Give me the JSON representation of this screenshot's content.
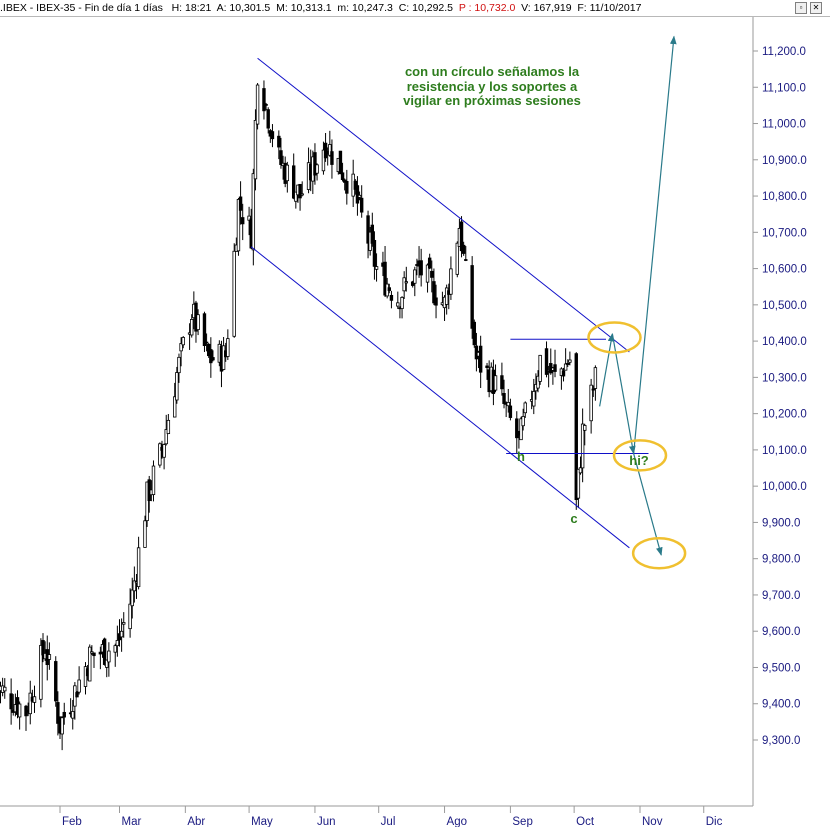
{
  "header": {
    "symbol": ".IBEX - IBEX-35 - Fin de día 1 días",
    "hora": "H: 18:21",
    "apertura": "A: 10,301.5",
    "maximo": "M: 10,313.1",
    "minimo": "m: 10,247.3",
    "cierre": "C: 10,292.5",
    "precio": "P : 10,732.0",
    "volumen": "V: 167,919",
    "fecha": "F: 11/10/2017"
  },
  "colors": {
    "candles": "#000000",
    "channel": "#1010c8",
    "arrows": "#2a7a8a",
    "circles": "#f0c030",
    "annotation": "#2e7d1e",
    "axis_text": "#1a1a80"
  },
  "annotation": {
    "lines": [
      "con un círculo señalamos la",
      "resistencia y los soportes a",
      "vigilar en próximas sesiones"
    ],
    "label_h": "h",
    "label_c": "c",
    "label_hi": "hi?"
  },
  "chart_data": {
    "type": "candlestick",
    "title": "",
    "xlabel": "",
    "ylabel": "",
    "ylim": [
      9180,
      11280
    ],
    "y_ticks": [
      "11,200.0",
      "11,100.0",
      "11,000.0",
      "10,900.0",
      "10,800.0",
      "10,700.0",
      "10,600.0",
      "10,500.0",
      "10,400.0",
      "10,300.0",
      "10,200.0",
      "10,100.0",
      "10,000.0",
      "9,900.0",
      "9,800.0",
      "9,700.0",
      "9,600.0",
      "9,500.0",
      "9,400.0",
      "9,300.0"
    ],
    "x_ticks": [
      "Feb",
      "Mar",
      "Abr",
      "May",
      "Jun",
      "Jul",
      "Ago",
      "Sep",
      "Oct",
      "Nov",
      "Dic"
    ],
    "approx_close_path": [
      [
        "2017-01-02",
        9450
      ],
      [
        "2017-01-16",
        9380
      ],
      [
        "2017-01-25",
        9560
      ],
      [
        "2017-02-01",
        9340
      ],
      [
        "2017-02-15",
        9530
      ],
      [
        "2017-02-28",
        9560
      ],
      [
        "2017-03-07",
        9700
      ],
      [
        "2017-03-14",
        9970
      ],
      [
        "2017-03-21",
        10100
      ],
      [
        "2017-03-28",
        10310
      ],
      [
        "2017-04-04",
        10480
      ],
      [
        "2017-04-12",
        10350
      ],
      [
        "2017-04-20",
        10360
      ],
      [
        "2017-04-26",
        10780
      ],
      [
        "2017-05-02",
        10700
      ],
      [
        "2017-05-05",
        11150
      ],
      [
        "2017-05-15",
        10900
      ],
      [
        "2017-05-25",
        10800
      ],
      [
        "2017-06-06",
        10950
      ],
      [
        "2017-06-19",
        10820
      ],
      [
        "2017-06-30",
        10600
      ],
      [
        "2017-07-10",
        10520
      ],
      [
        "2017-07-20",
        10600
      ],
      [
        "2017-08-01",
        10500
      ],
      [
        "2017-08-08",
        10720
      ],
      [
        "2017-08-16",
        10350
      ],
      [
        "2017-08-25",
        10280
      ],
      [
        "2017-09-05",
        10120
      ],
      [
        "2017-09-15",
        10350
      ],
      [
        "2017-09-22",
        10300
      ],
      [
        "2017-09-29",
        10350
      ],
      [
        "2017-10-02",
        9950
      ],
      [
        "2017-10-05",
        10150
      ],
      [
        "2017-10-11",
        10292.5
      ]
    ],
    "channel_lines": [
      {
        "from": [
          "2017-05-05",
          11180
        ],
        "to": [
          "2017-10-27",
          10370
        ]
      },
      {
        "from": [
          "2017-05-02",
          10660
        ],
        "to": [
          "2017-10-27",
          9830
        ]
      }
    ],
    "horizontal_lines": [
      {
        "from": "2017-09-01",
        "to": "2017-10-16",
        "value": 10405
      },
      {
        "from": "2017-08-30",
        "to": "2017-10-04",
        "value": 10090
      },
      {
        "from": "2017-10-04",
        "to": "2017-11-05",
        "value": 10090
      }
    ],
    "forecast_path": [
      [
        "2017-10-13",
        10220
      ],
      [
        "2017-10-19",
        10420
      ],
      [
        "2017-10-29",
        10090
      ],
      [
        "2017-11-17",
        11240
      ]
    ],
    "forecast_branch": [
      [
        "2017-10-29",
        10090
      ],
      [
        "2017-11-11",
        9810
      ]
    ],
    "circles": [
      {
        "date": "2017-10-20",
        "value": 10410
      },
      {
        "date": "2017-11-01",
        "value": 10085
      },
      {
        "date": "2017-11-10",
        "value": 9815
      }
    ]
  }
}
